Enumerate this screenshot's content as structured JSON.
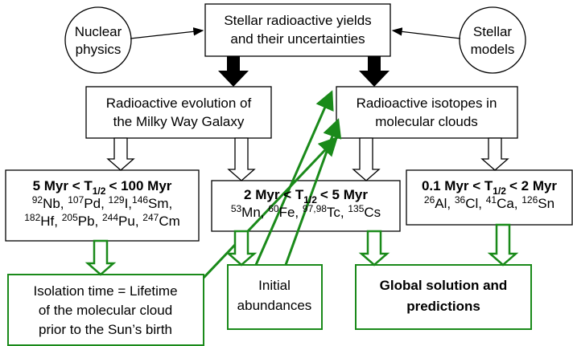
{
  "top": {
    "lines": [
      "Stellar radioactive yields",
      "and their uncertainties"
    ]
  },
  "inputs": [
    {
      "lines": [
        "Nuclear",
        "physics"
      ]
    },
    {
      "lines": [
        "Stellar",
        "models"
      ]
    }
  ],
  "evolution": {
    "lines": [
      "Radioactive evolution of",
      "the Milky Way Galaxy"
    ]
  },
  "clouds": {
    "lines": [
      "Radioactive isotopes in",
      "molecular clouds"
    ]
  },
  "groups": [
    {
      "range": {
        "pre": "5 Myr < T",
        "sub": "1/2",
        "post": "< 100 Myr"
      },
      "isotopes": [
        [
          {
            "mass": "92",
            "rest": "Nb, "
          },
          {
            "mass": "107",
            "rest": "Pd, "
          },
          {
            "mass": "129",
            "rest": "I,"
          },
          {
            "mass": "146",
            "rest": "Sm,"
          }
        ],
        [
          {
            "mass": "182",
            "rest": "Hf, "
          },
          {
            "mass": "205",
            "rest": "Pb, "
          },
          {
            "mass": "244",
            "rest": "Pu, "
          },
          {
            "mass": "247",
            "rest": "Cm"
          }
        ]
      ]
    },
    {
      "range": {
        "pre": "2 Myr < T",
        "sub": "1/2",
        "post": "< 5 Myr"
      },
      "isotopes": [
        [
          {
            "mass": "53",
            "rest": "Mn, "
          },
          {
            "mass": "60",
            "rest": "Fe, "
          },
          {
            "mass": "97,98",
            "rest": "Tc, "
          },
          {
            "mass": "135",
            "rest": "Cs"
          }
        ]
      ]
    },
    {
      "range": {
        "pre": "0.1 Myr < T",
        "sub": "1/2",
        "post": "< 2 Myr"
      },
      "isotopes": [
        [
          {
            "mass": "26",
            "rest": "Al, "
          },
          {
            "mass": "36",
            "rest": "Cl, "
          },
          {
            "mass": "41",
            "rest": "Ca, "
          },
          {
            "mass": "126",
            "rest": "Sn"
          }
        ]
      ]
    }
  ],
  "outputs": [
    {
      "lines": [
        "Isolation time =  Lifetime",
        "of the molecular cloud",
        "prior to the Sun’s birth"
      ]
    },
    {
      "lines": [
        "Initial",
        "abundances"
      ]
    },
    {
      "lines": [
        "Global solution and",
        "predictions"
      ]
    }
  ]
}
